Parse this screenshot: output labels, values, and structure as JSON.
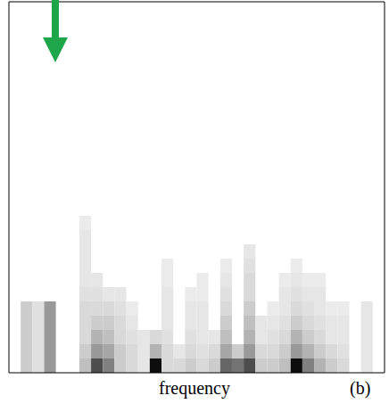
{
  "chart_data": {
    "type": "heatmap",
    "x_label": "frequency",
    "panel": "(b)",
    "xlim": [
      0,
      32
    ],
    "ylim": [
      0,
      26
    ],
    "yticks": [
      2,
      6,
      10,
      14,
      18,
      22
    ],
    "tick_labels": false,
    "color_range": [
      0,
      1
    ],
    "cells": [
      [
        0,
        0,
        0,
        0,
        0,
        0,
        0,
        0,
        0,
        0,
        0,
        0
      ],
      [
        0.2,
        0.2,
        0.2,
        0.2,
        0.2,
        0,
        0,
        0,
        0,
        0,
        0,
        0
      ],
      [
        0.12,
        0.12,
        0.12,
        0.12,
        0.12,
        0,
        0,
        0,
        0,
        0,
        0,
        0
      ],
      [
        0.4,
        0.4,
        0.4,
        0.4,
        0.4,
        0,
        0,
        0,
        0,
        0,
        0,
        0
      ],
      [
        0,
        0,
        0,
        0,
        0,
        0,
        0,
        0,
        0,
        0,
        0,
        0
      ],
      [
        0,
        0,
        0,
        0,
        0,
        0,
        0,
        0,
        0,
        0,
        0,
        0
      ],
      [
        0.25,
        0.2,
        0.15,
        0.15,
        0.15,
        0.12,
        0.1,
        0.1,
        0.1,
        0.1,
        0.08,
        0
      ],
      [
        0.7,
        0.4,
        0.3,
        0.2,
        0.15,
        0.12,
        0.1,
        0,
        0,
        0,
        0,
        0
      ],
      [
        0.5,
        0.35,
        0.25,
        0.2,
        0.15,
        0.1,
        0,
        0,
        0,
        0,
        0,
        0
      ],
      [
        0.2,
        0.2,
        0.15,
        0.15,
        0.12,
        0.1,
        0,
        0,
        0,
        0,
        0,
        0
      ],
      [
        0.15,
        0.15,
        0.12,
        0.1,
        0.08,
        0,
        0,
        0,
        0,
        0,
        0,
        0
      ],
      [
        0.1,
        0.1,
        0.1,
        0,
        0,
        0,
        0,
        0,
        0,
        0,
        0,
        0
      ],
      [
        0.95,
        0.3,
        0.15,
        0,
        0,
        0,
        0,
        0,
        0,
        0,
        0,
        0
      ],
      [
        0.15,
        0.15,
        0.12,
        0.1,
        0.1,
        0.1,
        0.08,
        0.08,
        0,
        0,
        0,
        0
      ],
      [
        0.15,
        0.1,
        0,
        0,
        0,
        0,
        0,
        0,
        0,
        0,
        0,
        0
      ],
      [
        0.2,
        0.15,
        0.12,
        0.1,
        0.1,
        0.08,
        0,
        0,
        0,
        0,
        0,
        0
      ],
      [
        0.15,
        0.12,
        0.1,
        0.1,
        0.1,
        0.08,
        0.08,
        0,
        0,
        0,
        0,
        0
      ],
      [
        0.2,
        0.15,
        0.1,
        0,
        0,
        0,
        0,
        0,
        0,
        0,
        0,
        0
      ],
      [
        0.6,
        0.35,
        0.25,
        0.2,
        0.15,
        0.12,
        0.1,
        0.08,
        0,
        0,
        0,
        0
      ],
      [
        0.55,
        0.2,
        0,
        0,
        0,
        0,
        0,
        0,
        0,
        0,
        0,
        0
      ],
      [
        0.7,
        0.4,
        0.3,
        0.25,
        0.2,
        0.15,
        0.15,
        0.12,
        0.1,
        0,
        0,
        0
      ],
      [
        0.2,
        0.15,
        0.1,
        0.1,
        0,
        0,
        0,
        0,
        0,
        0,
        0,
        0
      ],
      [
        0.2,
        0.15,
        0.12,
        0.1,
        0.08,
        0,
        0,
        0,
        0,
        0,
        0,
        0
      ],
      [
        0.25,
        0.2,
        0.15,
        0.12,
        0.1,
        0.1,
        0.08,
        0,
        0,
        0,
        0,
        0
      ],
      [
        0.95,
        0.4,
        0.3,
        0.2,
        0.15,
        0.12,
        0.1,
        0.08,
        0,
        0,
        0,
        0
      ],
      [
        0.5,
        0.3,
        0.2,
        0.15,
        0.12,
        0.1,
        0.08,
        0,
        0,
        0,
        0,
        0
      ],
      [
        0.3,
        0.2,
        0.15,
        0.12,
        0.1,
        0.1,
        0.08,
        0,
        0,
        0,
        0,
        0
      ],
      [
        0.2,
        0.15,
        0.1,
        0.1,
        0.08,
        0,
        0,
        0,
        0,
        0,
        0,
        0
      ],
      [
        0.15,
        0.12,
        0.1,
        0.1,
        0.08,
        0,
        0,
        0,
        0,
        0,
        0,
        0
      ],
      [
        0,
        0,
        0,
        0,
        0,
        0,
        0,
        0,
        0,
        0,
        0,
        0
      ],
      [
        0.1,
        0.1,
        0.1,
        0.1,
        0.1,
        0,
        0,
        0,
        0,
        0,
        0,
        0
      ],
      [
        0,
        0,
        0,
        0,
        0,
        0,
        0,
        0,
        0,
        0,
        0,
        0
      ]
    ]
  }
}
